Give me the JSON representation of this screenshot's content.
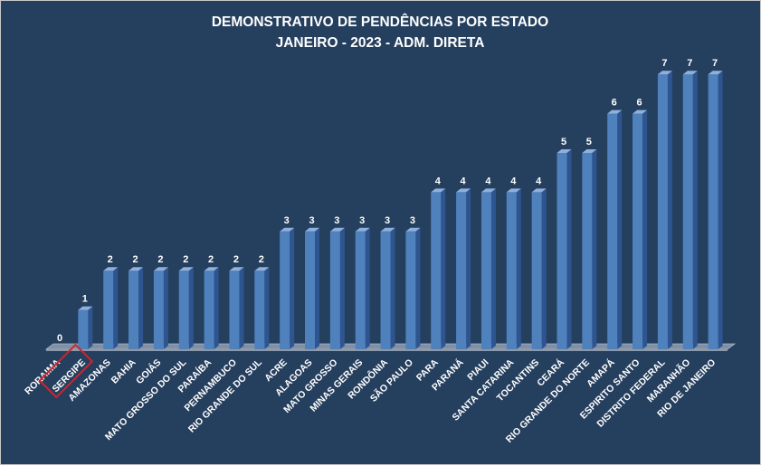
{
  "chart_data": {
    "type": "bar",
    "title": "DEMONSTRATIVO DE PENDÊNCIAS POR ESTADO",
    "subtitle": "JANEIRO - 2023 - ADM. DIRETA",
    "categories": [
      "RORAIMA",
      "SERGIPE",
      "AMAZONAS",
      "BAHIA",
      "GOIÁS",
      "MATO GROSSO  DO SUL",
      "PARAÍBA",
      "PERNAMBUCO",
      "RIO GRANDE DO SUL",
      "ACRE",
      "ALAGOAS",
      "MATO GROSSO",
      "MINAS GERAIS",
      "RONDÔNIA",
      "SÃO PAULO",
      "PARA",
      "PARANÁ",
      "PIAUI",
      "SANTA CATARINA",
      "TOCANTINS",
      "CEARÁ",
      "RIO GRANDE  DO NORTE",
      "AMAPÁ",
      "ESPIRITO SANTO",
      "DISTRITO FEDERAL",
      "MARANHÃO",
      "RIO DE JANEIRO"
    ],
    "values": [
      0,
      1,
      2,
      2,
      2,
      2,
      2,
      2,
      2,
      3,
      3,
      3,
      3,
      3,
      3,
      4,
      4,
      4,
      4,
      4,
      5,
      5,
      6,
      6,
      7,
      7,
      7
    ],
    "ylim": [
      0,
      7
    ],
    "grid": false,
    "legend": "none",
    "highlighted_category": "SERGIPE",
    "colors": {
      "background": "#253f5e",
      "bar_front": "#4f81bd",
      "bar_side": "#2f5590",
      "bar_top": "#8fb0dc",
      "highlight_box": "#d0242b",
      "text": "#ffffff"
    }
  }
}
